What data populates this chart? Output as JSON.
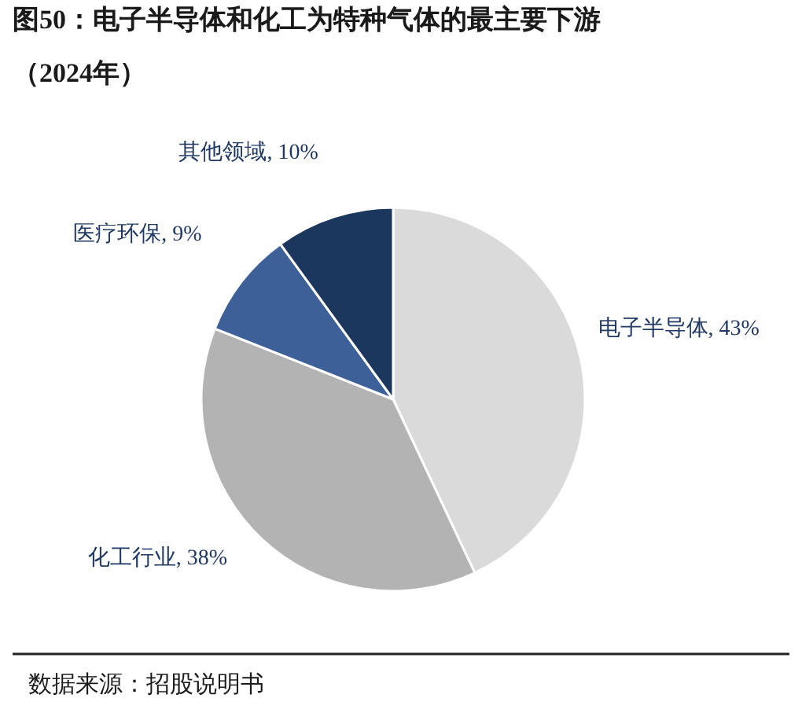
{
  "chart_data": {
    "type": "pie",
    "title": "图50：电子半导体和化工为特种气体的最主要下游（2024年）",
    "categories": [
      "电子半导体",
      "化工行业",
      "医疗环保",
      "其他领域"
    ],
    "values": [
      43,
      38,
      9,
      10
    ],
    "value_labels": [
      "43%",
      "38%",
      "9%",
      "10%"
    ],
    "colors": [
      "#dadada",
      "#b3b3b3",
      "#3d6098",
      "#1c375e"
    ],
    "annotations": [
      "数据来源：招股说明书"
    ]
  }
}
